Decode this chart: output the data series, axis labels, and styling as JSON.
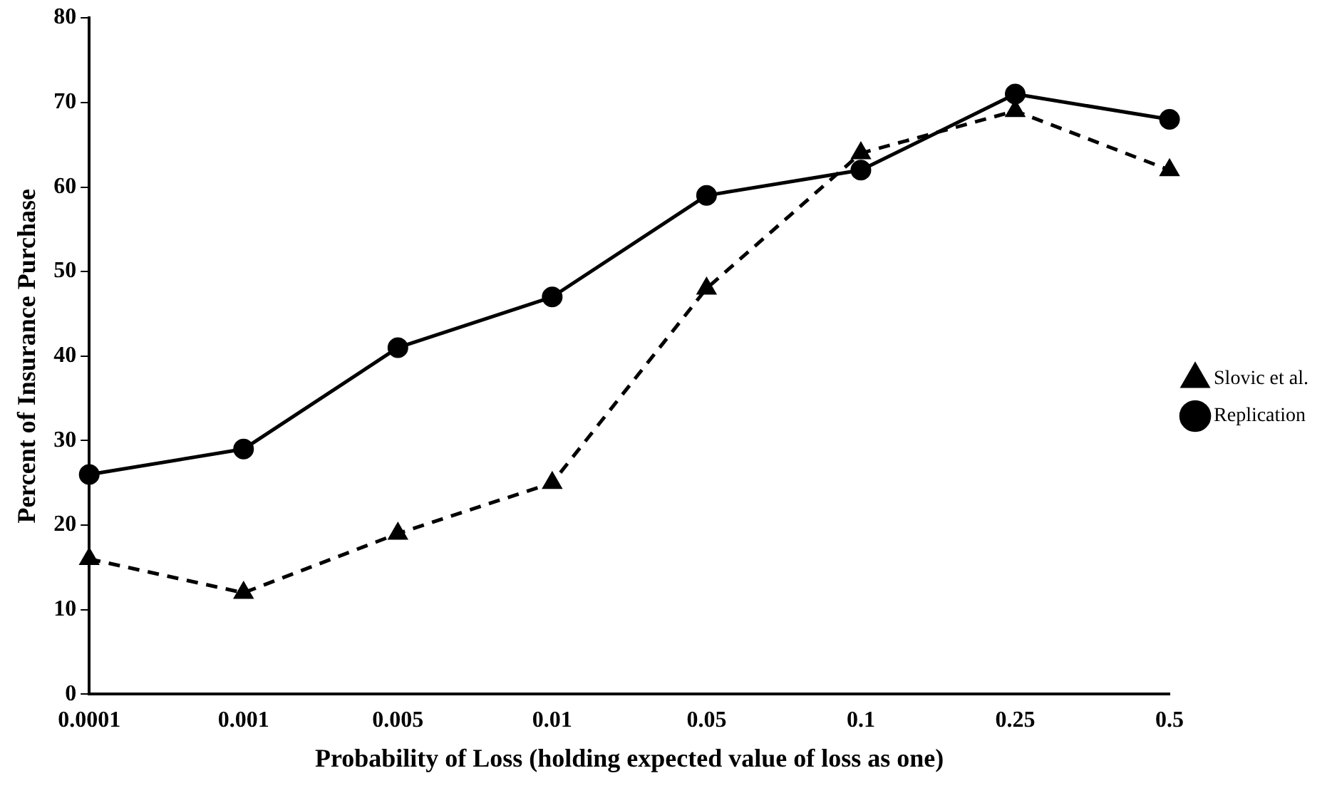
{
  "chart_data": {
    "type": "line",
    "xlabel": "Probability of Loss (holding expected value of loss as one)",
    "ylabel": "Percent of Insurance Purchase",
    "categories": [
      "0.0001",
      "0.001",
      "0.005",
      "0.01",
      "0.05",
      "0.1",
      "0.25",
      "0.5"
    ],
    "series": [
      {
        "name": "Slovic et al.",
        "color": "#000000",
        "values": [
          16,
          12,
          19,
          25,
          48,
          64,
          69,
          62
        ],
        "marker": "triangle",
        "line_style": "dashed"
      },
      {
        "name": "Replication",
        "color": "#000000",
        "values": [
          26,
          29,
          41,
          47,
          59,
          62,
          71,
          68
        ],
        "marker": "circle",
        "line_style": "solid"
      }
    ],
    "ylim": [
      0,
      80
    ],
    "yticks": [
      0,
      10,
      20,
      30,
      40,
      50,
      60,
      70,
      80
    ],
    "grid": false,
    "legend": "right"
  }
}
